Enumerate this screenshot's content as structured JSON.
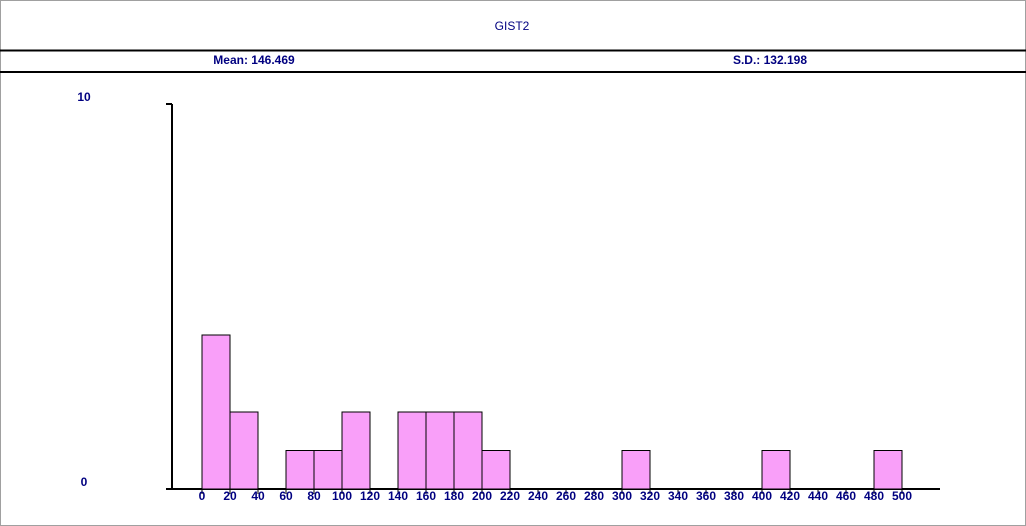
{
  "header": {
    "title": "GIST2",
    "mean": "Mean: 146.469",
    "sd": "S.D.: 132.198"
  },
  "chart_data": {
    "type": "histogram",
    "bins": [
      0,
      20,
      40,
      60,
      80,
      100,
      120,
      140,
      160,
      180,
      200,
      220,
      240,
      260,
      280,
      300,
      320,
      340,
      360,
      380,
      400,
      420,
      440,
      460,
      480,
      500
    ],
    "values": [
      4,
      2,
      0,
      1,
      1,
      2,
      0,
      2,
      2,
      2,
      1,
      0,
      0,
      0,
      0,
      1,
      0,
      0,
      0,
      0,
      1,
      0,
      0,
      0,
      1
    ],
    "color": "#f99ff9",
    "xlim": [
      0,
      500
    ],
    "xticks": [
      0,
      20,
      40,
      60,
      80,
      100,
      120,
      140,
      160,
      180,
      200,
      220,
      240,
      260,
      280,
      300,
      320,
      340,
      360,
      380,
      400,
      420,
      440,
      460,
      480,
      500
    ],
    "ylim": [
      0,
      10
    ],
    "yticks": [
      0,
      10
    ]
  }
}
